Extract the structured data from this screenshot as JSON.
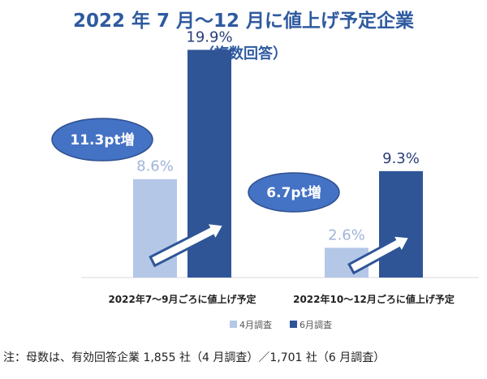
{
  "title": "2022 年 7 月〜12 月に値上げ予定企業",
  "subtitle": "（複数回答）",
  "note": "注：母数は、有効回答企業 1,855 社（4 月調査）／1,701 社（6 月調査）",
  "colors": {
    "april": "#b4c7e7",
    "june": "#2f5597",
    "april_label": "#9fb4d9",
    "june_label": "#2a3f7a",
    "callout_fill": "#4472c4",
    "callout_stroke": "#2f4f8f",
    "arrow_fill": "#ffffff",
    "arrow_stroke": "#2f5597"
  },
  "chart_data": {
    "type": "bar",
    "categories": [
      "2022年7～9月ごろに値上げ予定",
      "2022年10～12月ごろに値上げ予定"
    ],
    "series": [
      {
        "name": "4月調査",
        "values": [
          8.6,
          2.6
        ],
        "labels": [
          "8.6%",
          "2.6%"
        ]
      },
      {
        "name": "6月調査",
        "values": [
          19.9,
          9.3
        ],
        "labels": [
          "19.9%",
          "9.3%"
        ]
      }
    ],
    "callouts": [
      "11.3pt増",
      "6.7pt増"
    ],
    "ylim": [
      0,
      20
    ],
    "legend_position": "bottom"
  }
}
